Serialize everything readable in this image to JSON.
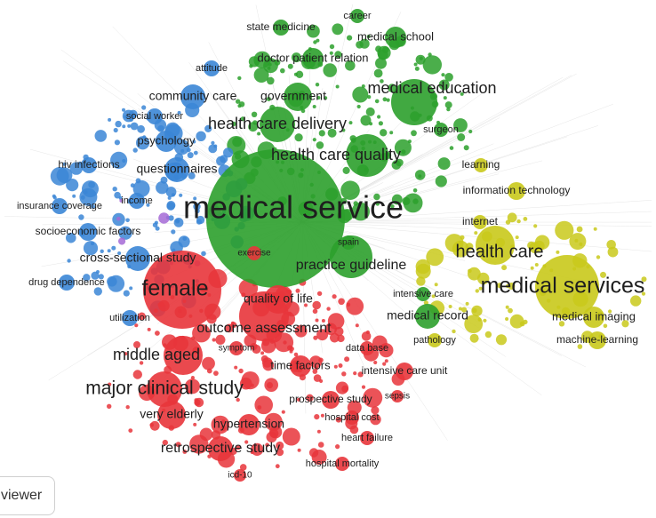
{
  "viewer_button": {
    "label": "viewer"
  },
  "clusters": {
    "green": "#2ca02c",
    "blue": "#3b86d6",
    "red": "#e8353b",
    "yellow": "#c9c91b",
    "purple": "#a56ad6"
  },
  "terms": [
    {
      "id": "medical-service",
      "label": "medical service",
      "cluster": "green"
    },
    {
      "id": "medical-services",
      "label": "medical services",
      "cluster": "yellow"
    },
    {
      "id": "female",
      "label": "female",
      "cluster": "red"
    },
    {
      "id": "major-clinical-study",
      "label": "major clinical study",
      "cluster": "red"
    },
    {
      "id": "health-care",
      "label": "health care",
      "cluster": "yellow"
    },
    {
      "id": "medical-education",
      "label": "medical education",
      "cluster": "green"
    },
    {
      "id": "health-care-quality",
      "label": "health care quality",
      "cluster": "green"
    },
    {
      "id": "health-care-delivery",
      "label": "health care delivery",
      "cluster": "green"
    },
    {
      "id": "middle-aged",
      "label": "middle aged",
      "cluster": "red"
    },
    {
      "id": "outcome-assessment",
      "label": "outcome assessment",
      "cluster": "red"
    },
    {
      "id": "practice-guideline",
      "label": "practice guideline",
      "cluster": "green"
    },
    {
      "id": "retrospective-study",
      "label": "retrospective study",
      "cluster": "red"
    },
    {
      "id": "community-care",
      "label": "community care",
      "cluster": "blue"
    },
    {
      "id": "government",
      "label": "government",
      "cluster": "green"
    },
    {
      "id": "cross-sectional-study",
      "label": "cross-sectional study",
      "cluster": "blue"
    },
    {
      "id": "questionnaires",
      "label": "questionnaires",
      "cluster": "blue"
    },
    {
      "id": "quality-of-life",
      "label": "quality of life",
      "cluster": "red"
    },
    {
      "id": "medical-record",
      "label": "medical record",
      "cluster": "green"
    },
    {
      "id": "very-elderly",
      "label": "very elderly",
      "cluster": "red"
    },
    {
      "id": "hypertension",
      "label": "hypertension",
      "cluster": "red"
    },
    {
      "id": "medical-imaging",
      "label": "medical imaging",
      "cluster": "yellow"
    },
    {
      "id": "doctor-patient-relation",
      "label": "doctor patient relation",
      "cluster": "green"
    },
    {
      "id": "psychology",
      "label": "psychology",
      "cluster": "blue"
    },
    {
      "id": "medical-school",
      "label": "medical school",
      "cluster": "green"
    },
    {
      "id": "time-factors",
      "label": "time factors",
      "cluster": "red"
    },
    {
      "id": "intensive-care-unit",
      "label": "intensive care unit",
      "cluster": "red"
    },
    {
      "id": "prospective-study",
      "label": "prospective study",
      "cluster": "red"
    },
    {
      "id": "machine-learning",
      "label": "machine-learning",
      "cluster": "yellow"
    },
    {
      "id": "information-technology",
      "label": "information technology",
      "cluster": "yellow"
    },
    {
      "id": "state-medicine",
      "label": "state medicine",
      "cluster": "green"
    },
    {
      "id": "socioeconomic-factors",
      "label": "socioeconomic factors",
      "cluster": "blue"
    },
    {
      "id": "hiv-infections",
      "label": "hiv infections",
      "cluster": "blue"
    },
    {
      "id": "insurance-coverage",
      "label": "insurance coverage",
      "cluster": "blue"
    },
    {
      "id": "drug-dependence",
      "label": "drug dependence",
      "cluster": "blue"
    },
    {
      "id": "social-worker",
      "label": "social worker",
      "cluster": "blue"
    },
    {
      "id": "attitude",
      "label": "attitude",
      "cluster": "blue"
    },
    {
      "id": "income",
      "label": "income",
      "cluster": "blue"
    },
    {
      "id": "utilization",
      "label": "utilization",
      "cluster": "blue"
    },
    {
      "id": "exercise",
      "label": "exercise",
      "cluster": "red"
    },
    {
      "id": "spain",
      "label": "spain",
      "cluster": "green"
    },
    {
      "id": "learning",
      "label": "learning",
      "cluster": "yellow"
    },
    {
      "id": "internet",
      "label": "internet",
      "cluster": "yellow"
    },
    {
      "id": "surgeon",
      "label": "surgeon",
      "cluster": "green"
    },
    {
      "id": "career",
      "label": "career",
      "cluster": "green"
    },
    {
      "id": "intensive-care",
      "label": "intensive care",
      "cluster": "green"
    },
    {
      "id": "pathology",
      "label": "pathology",
      "cluster": "yellow"
    },
    {
      "id": "data-base",
      "label": "data base",
      "cluster": "red"
    },
    {
      "id": "symptom",
      "label": "symptom",
      "cluster": "red"
    },
    {
      "id": "sepsis",
      "label": "sepsis",
      "cluster": "red"
    },
    {
      "id": "hospital-cost",
      "label": "hospital cost",
      "cluster": "red"
    },
    {
      "id": "heart-failure",
      "label": "heart failure",
      "cluster": "red"
    },
    {
      "id": "hospital-mortality",
      "label": "hospital mortality",
      "cluster": "red"
    },
    {
      "id": "icd-10",
      "label": "icd-10",
      "cluster": "red"
    }
  ]
}
